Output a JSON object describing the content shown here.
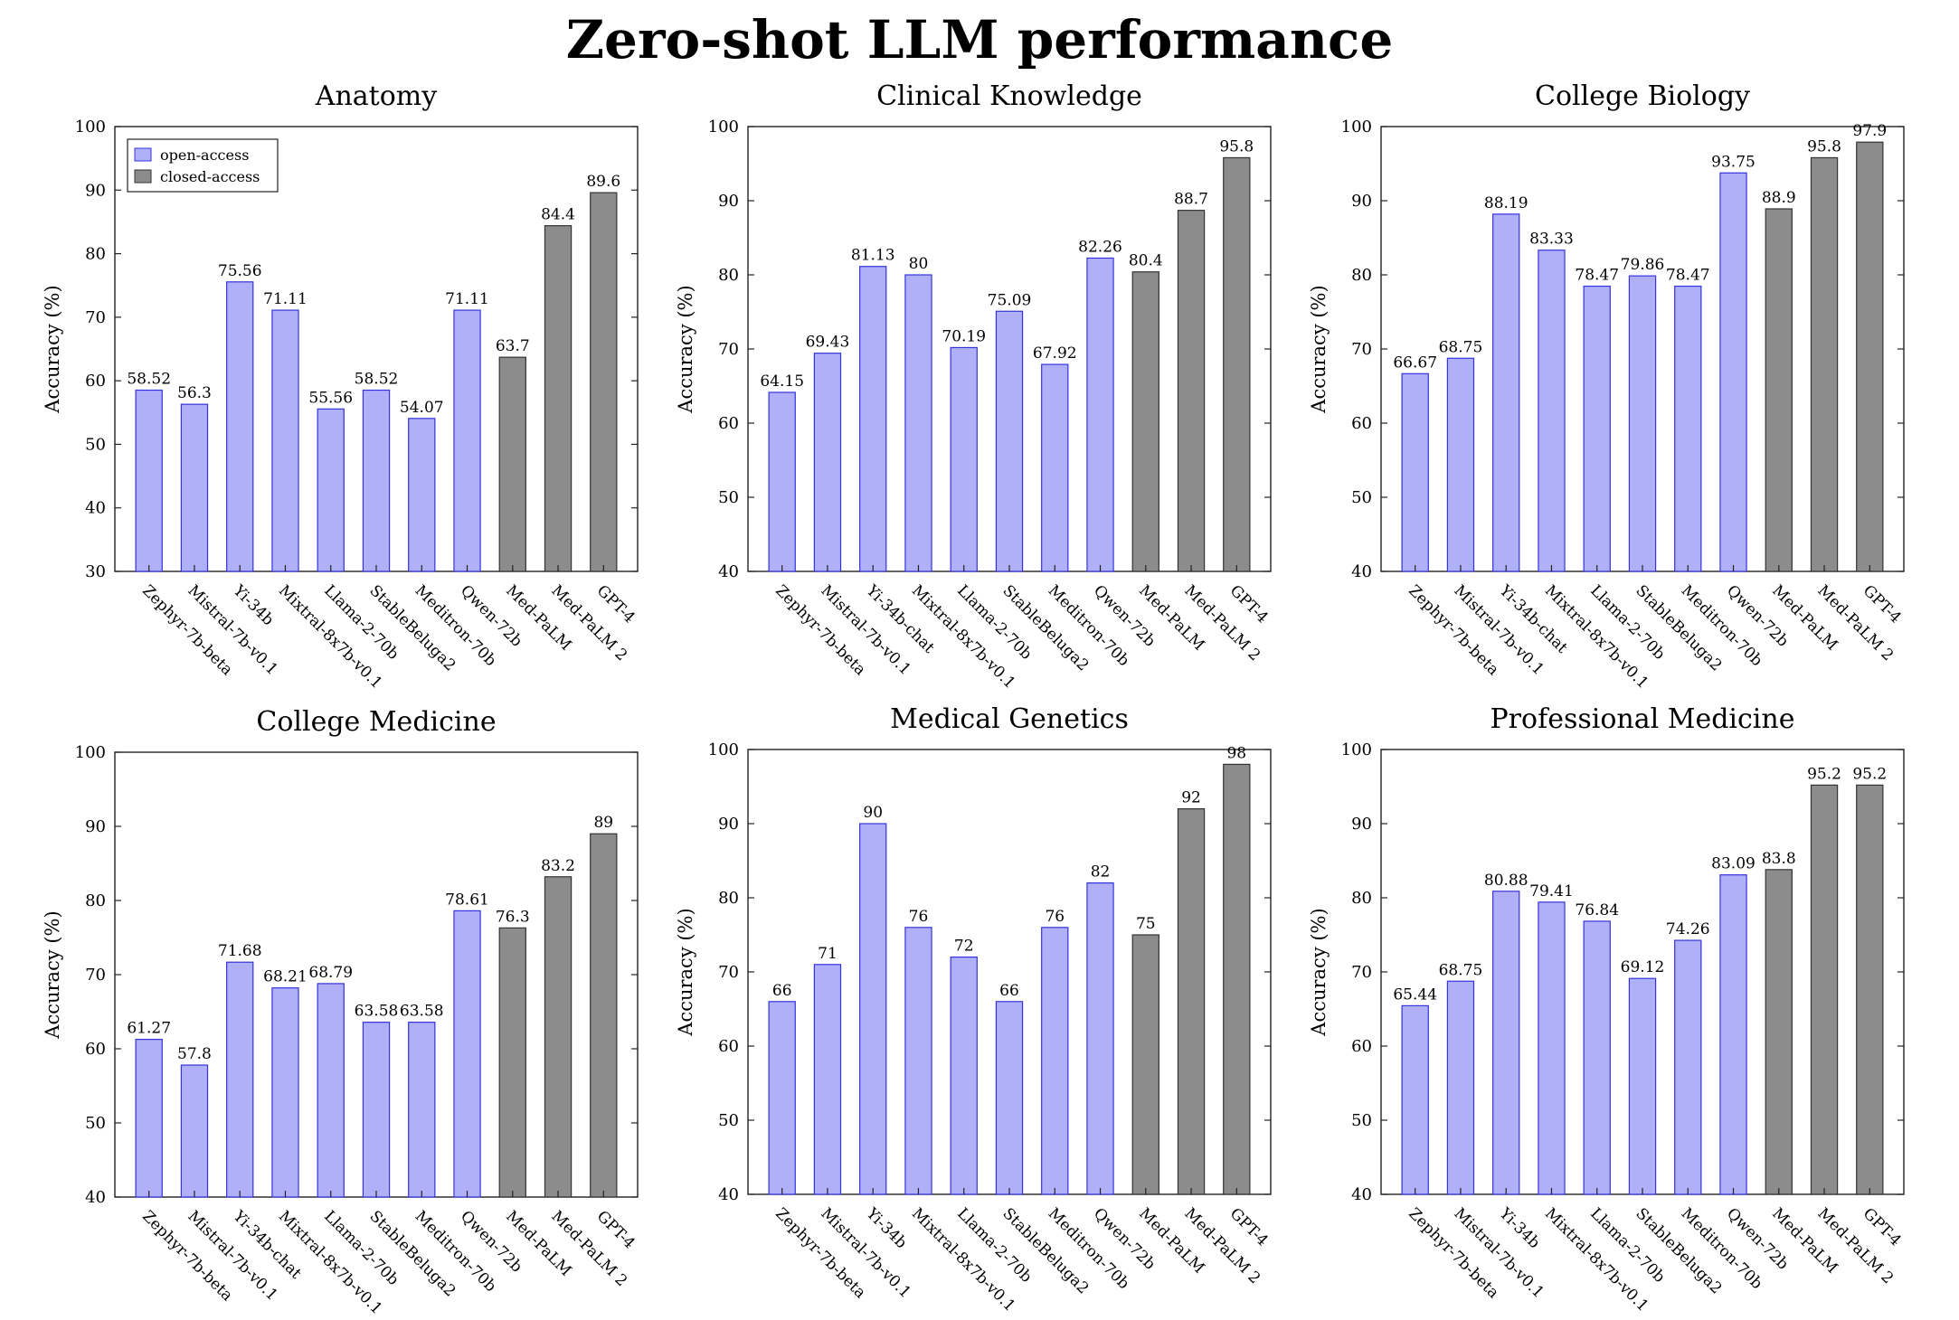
{
  "title": "Zero-shot LLM performance",
  "legend": {
    "position": "top-left",
    "entries": [
      "open-access",
      "closed-access"
    ]
  },
  "colors": {
    "open_fill": "#b0b0f8",
    "open_stroke": "#3333dd",
    "closed_fill": "#8c8c8c",
    "closed_stroke": "#333333"
  },
  "chart_data": [
    {
      "type": "bar",
      "title": "Anatomy",
      "ylabel": "Accuracy (%)",
      "ylim": [
        30,
        100
      ],
      "yticks": [
        30,
        40,
        50,
        60,
        70,
        80,
        90,
        100
      ],
      "categories": [
        "Zephyr-7b-beta",
        "Mistral-7b-v0.1",
        "Yi-34b",
        "Mixtral-8x7b-v0.1",
        "Llama-2-70b",
        "StableBeluga2",
        "Meditron-70b",
        "Qwen-72b",
        "Med-PaLM",
        "Med-PaLM 2",
        "GPT-4"
      ],
      "values": [
        58.52,
        56.3,
        75.56,
        71.11,
        55.56,
        58.52,
        54.07,
        71.11,
        63.7,
        84.4,
        89.6
      ],
      "labels": [
        "58.52",
        "56.3",
        "75.56",
        "71.11",
        "55.56",
        "58.52",
        "54.07",
        "71.11",
        "63.7",
        "84.4",
        "89.6"
      ],
      "groups": [
        "open",
        "open",
        "open",
        "open",
        "open",
        "open",
        "open",
        "open",
        "closed",
        "closed",
        "closed"
      ],
      "show_legend": true
    },
    {
      "type": "bar",
      "title": "Clinical Knowledge",
      "ylabel": "Accuracy (%)",
      "ylim": [
        40,
        100
      ],
      "yticks": [
        40,
        50,
        60,
        70,
        80,
        90,
        100
      ],
      "categories": [
        "Zephyr-7b-beta",
        "Mistral-7b-v0.1",
        "Yi-34b-chat",
        "Mixtral-8x7b-v0.1",
        "Llama-2-70b",
        "StableBeluga2",
        "Meditron-70b",
        "Qwen-72b",
        "Med-PaLM",
        "Med-PaLM 2",
        "GPT-4"
      ],
      "values": [
        64.15,
        69.43,
        81.13,
        80,
        70.19,
        75.09,
        67.92,
        82.26,
        80.4,
        88.7,
        95.8
      ],
      "labels": [
        "64.15",
        "69.43",
        "81.13",
        "80",
        "70.19",
        "75.09",
        "67.92",
        "82.26",
        "80.4",
        "88.7",
        "95.8"
      ],
      "groups": [
        "open",
        "open",
        "open",
        "open",
        "open",
        "open",
        "open",
        "open",
        "closed",
        "closed",
        "closed"
      ],
      "show_legend": false
    },
    {
      "type": "bar",
      "title": "College Biology",
      "ylabel": "Accuracy (%)",
      "ylim": [
        40,
        100
      ],
      "yticks": [
        40,
        50,
        60,
        70,
        80,
        90,
        100
      ],
      "categories": [
        "Zephyr-7b-beta",
        "Mistral-7b-v0.1",
        "Yi-34b-chat",
        "Mixtral-8x7b-v0.1",
        "Llama-2-70b",
        "StableBeluga2",
        "Meditron-70b",
        "Qwen-72b",
        "Med-PaLM",
        "Med-PaLM 2",
        "GPT-4"
      ],
      "values": [
        66.67,
        68.75,
        88.19,
        83.33,
        78.47,
        79.86,
        78.47,
        93.75,
        88.9,
        95.8,
        97.9
      ],
      "labels": [
        "66.67",
        "68.75",
        "88.19",
        "83.33",
        "78.47",
        "79.86",
        "78.47",
        "93.75",
        "88.9",
        "95.8",
        "97.9"
      ],
      "groups": [
        "open",
        "open",
        "open",
        "open",
        "open",
        "open",
        "open",
        "open",
        "closed",
        "closed",
        "closed"
      ],
      "show_legend": false
    },
    {
      "type": "bar",
      "title": "College Medicine",
      "ylabel": "Accuracy (%)",
      "ylim": [
        40,
        100
      ],
      "yticks": [
        40,
        50,
        60,
        70,
        80,
        90,
        100
      ],
      "categories": [
        "Zephyr-7b-beta",
        "Mistral-7b-v0.1",
        "Yi-34b-chat",
        "Mixtral-8x7b-v0.1",
        "Llama-2-70b",
        "StableBeluga2",
        "Meditron-70b",
        "Qwen-72b",
        "Med-PaLM",
        "Med-PaLM 2",
        "GPT-4"
      ],
      "values": [
        61.27,
        57.8,
        71.68,
        68.21,
        68.79,
        63.58,
        63.58,
        78.61,
        76.3,
        83.2,
        89
      ],
      "labels": [
        "61.27",
        "57.8",
        "71.68",
        "68.21",
        "68.79",
        "63.58",
        "63.58",
        "78.61",
        "76.3",
        "83.2",
        "89"
      ],
      "groups": [
        "open",
        "open",
        "open",
        "open",
        "open",
        "open",
        "open",
        "open",
        "closed",
        "closed",
        "closed"
      ],
      "show_legend": false
    },
    {
      "type": "bar",
      "title": "Medical Genetics",
      "ylabel": "Accuracy (%)",
      "ylim": [
        40,
        100
      ],
      "yticks": [
        40,
        50,
        60,
        70,
        80,
        90,
        100
      ],
      "categories": [
        "Zephyr-7b-beta",
        "Mistral-7b-v0.1",
        "Yi-34b",
        "Mixtral-8x7b-v0.1",
        "Llama-2-70b",
        "StableBeluga2",
        "Meditron-70b",
        "Qwen-72b",
        "Med-PaLM",
        "Med-PaLM 2",
        "GPT-4"
      ],
      "values": [
        66,
        71,
        90,
        76,
        72,
        66,
        76,
        82,
        75,
        92,
        98
      ],
      "labels": [
        "66",
        "71",
        "90",
        "76",
        "72",
        "66",
        "76",
        "82",
        "75",
        "92",
        "98"
      ],
      "groups": [
        "open",
        "open",
        "open",
        "open",
        "open",
        "open",
        "open",
        "open",
        "closed",
        "closed",
        "closed"
      ],
      "show_legend": false
    },
    {
      "type": "bar",
      "title": "Professional Medicine",
      "ylabel": "Accuracy (%)",
      "ylim": [
        40,
        100
      ],
      "yticks": [
        40,
        50,
        60,
        70,
        80,
        90,
        100
      ],
      "categories": [
        "Zephyr-7b-beta",
        "Mistral-7b-v0.1",
        "Yi-34b",
        "Mixtral-8x7b-v0.1",
        "Llama-2-70b",
        "StableBeluga2",
        "Meditron-70b",
        "Qwen-72b",
        "Med-PaLM",
        "Med-PaLM 2",
        "GPT-4"
      ],
      "values": [
        65.44,
        68.75,
        80.88,
        79.41,
        76.84,
        69.12,
        74.26,
        83.09,
        83.8,
        95.2,
        95.2
      ],
      "labels": [
        "65.44",
        "68.75",
        "80.88",
        "79.41",
        "76.84",
        "69.12",
        "74.26",
        "83.09",
        "83.8",
        "95.2",
        "95.2"
      ],
      "groups": [
        "open",
        "open",
        "open",
        "open",
        "open",
        "open",
        "open",
        "open",
        "closed",
        "closed",
        "closed"
      ],
      "show_legend": false
    }
  ]
}
